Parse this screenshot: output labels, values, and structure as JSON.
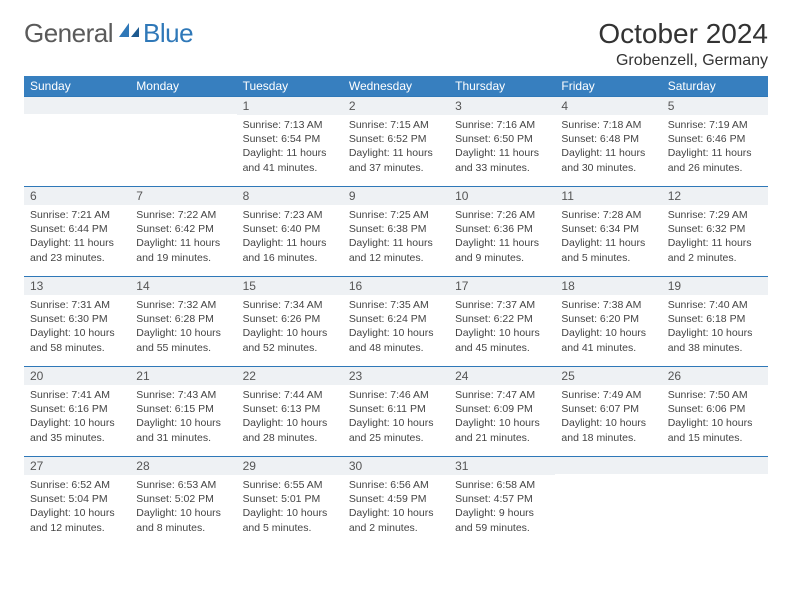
{
  "logo": {
    "part1": "General",
    "part2": "Blue"
  },
  "title": "October 2024",
  "location": "Grobenzell, Germany",
  "colors": {
    "header_bg": "#377fbf",
    "header_text": "#ffffff",
    "daynum_bg": "#eef1f4",
    "daynum_border": "#2f78b8",
    "body_text": "#444444",
    "logo_gray": "#5a5a5a",
    "logo_blue": "#2f78b8"
  },
  "fonts": {
    "title_pt": 28,
    "location_pt": 16,
    "header_pt": 12,
    "daynum_pt": 12,
    "cell_pt": 10.5
  },
  "weekdays": [
    "Sunday",
    "Monday",
    "Tuesday",
    "Wednesday",
    "Thursday",
    "Friday",
    "Saturday"
  ],
  "weeks": [
    [
      {
        "day": "",
        "l1": "",
        "l2": "",
        "l3": ""
      },
      {
        "day": "",
        "l1": "",
        "l2": "",
        "l3": ""
      },
      {
        "day": "1",
        "l1": "Sunrise: 7:13 AM",
        "l2": "Sunset: 6:54 PM",
        "l3": "Daylight: 11 hours and 41 minutes."
      },
      {
        "day": "2",
        "l1": "Sunrise: 7:15 AM",
        "l2": "Sunset: 6:52 PM",
        "l3": "Daylight: 11 hours and 37 minutes."
      },
      {
        "day": "3",
        "l1": "Sunrise: 7:16 AM",
        "l2": "Sunset: 6:50 PM",
        "l3": "Daylight: 11 hours and 33 minutes."
      },
      {
        "day": "4",
        "l1": "Sunrise: 7:18 AM",
        "l2": "Sunset: 6:48 PM",
        "l3": "Daylight: 11 hours and 30 minutes."
      },
      {
        "day": "5",
        "l1": "Sunrise: 7:19 AM",
        "l2": "Sunset: 6:46 PM",
        "l3": "Daylight: 11 hours and 26 minutes."
      }
    ],
    [
      {
        "day": "6",
        "l1": "Sunrise: 7:21 AM",
        "l2": "Sunset: 6:44 PM",
        "l3": "Daylight: 11 hours and 23 minutes."
      },
      {
        "day": "7",
        "l1": "Sunrise: 7:22 AM",
        "l2": "Sunset: 6:42 PM",
        "l3": "Daylight: 11 hours and 19 minutes."
      },
      {
        "day": "8",
        "l1": "Sunrise: 7:23 AM",
        "l2": "Sunset: 6:40 PM",
        "l3": "Daylight: 11 hours and 16 minutes."
      },
      {
        "day": "9",
        "l1": "Sunrise: 7:25 AM",
        "l2": "Sunset: 6:38 PM",
        "l3": "Daylight: 11 hours and 12 minutes."
      },
      {
        "day": "10",
        "l1": "Sunrise: 7:26 AM",
        "l2": "Sunset: 6:36 PM",
        "l3": "Daylight: 11 hours and 9 minutes."
      },
      {
        "day": "11",
        "l1": "Sunrise: 7:28 AM",
        "l2": "Sunset: 6:34 PM",
        "l3": "Daylight: 11 hours and 5 minutes."
      },
      {
        "day": "12",
        "l1": "Sunrise: 7:29 AM",
        "l2": "Sunset: 6:32 PM",
        "l3": "Daylight: 11 hours and 2 minutes."
      }
    ],
    [
      {
        "day": "13",
        "l1": "Sunrise: 7:31 AM",
        "l2": "Sunset: 6:30 PM",
        "l3": "Daylight: 10 hours and 58 minutes."
      },
      {
        "day": "14",
        "l1": "Sunrise: 7:32 AM",
        "l2": "Sunset: 6:28 PM",
        "l3": "Daylight: 10 hours and 55 minutes."
      },
      {
        "day": "15",
        "l1": "Sunrise: 7:34 AM",
        "l2": "Sunset: 6:26 PM",
        "l3": "Daylight: 10 hours and 52 minutes."
      },
      {
        "day": "16",
        "l1": "Sunrise: 7:35 AM",
        "l2": "Sunset: 6:24 PM",
        "l3": "Daylight: 10 hours and 48 minutes."
      },
      {
        "day": "17",
        "l1": "Sunrise: 7:37 AM",
        "l2": "Sunset: 6:22 PM",
        "l3": "Daylight: 10 hours and 45 minutes."
      },
      {
        "day": "18",
        "l1": "Sunrise: 7:38 AM",
        "l2": "Sunset: 6:20 PM",
        "l3": "Daylight: 10 hours and 41 minutes."
      },
      {
        "day": "19",
        "l1": "Sunrise: 7:40 AM",
        "l2": "Sunset: 6:18 PM",
        "l3": "Daylight: 10 hours and 38 minutes."
      }
    ],
    [
      {
        "day": "20",
        "l1": "Sunrise: 7:41 AM",
        "l2": "Sunset: 6:16 PM",
        "l3": "Daylight: 10 hours and 35 minutes."
      },
      {
        "day": "21",
        "l1": "Sunrise: 7:43 AM",
        "l2": "Sunset: 6:15 PM",
        "l3": "Daylight: 10 hours and 31 minutes."
      },
      {
        "day": "22",
        "l1": "Sunrise: 7:44 AM",
        "l2": "Sunset: 6:13 PM",
        "l3": "Daylight: 10 hours and 28 minutes."
      },
      {
        "day": "23",
        "l1": "Sunrise: 7:46 AM",
        "l2": "Sunset: 6:11 PM",
        "l3": "Daylight: 10 hours and 25 minutes."
      },
      {
        "day": "24",
        "l1": "Sunrise: 7:47 AM",
        "l2": "Sunset: 6:09 PM",
        "l3": "Daylight: 10 hours and 21 minutes."
      },
      {
        "day": "25",
        "l1": "Sunrise: 7:49 AM",
        "l2": "Sunset: 6:07 PM",
        "l3": "Daylight: 10 hours and 18 minutes."
      },
      {
        "day": "26",
        "l1": "Sunrise: 7:50 AM",
        "l2": "Sunset: 6:06 PM",
        "l3": "Daylight: 10 hours and 15 minutes."
      }
    ],
    [
      {
        "day": "27",
        "l1": "Sunrise: 6:52 AM",
        "l2": "Sunset: 5:04 PM",
        "l3": "Daylight: 10 hours and 12 minutes."
      },
      {
        "day": "28",
        "l1": "Sunrise: 6:53 AM",
        "l2": "Sunset: 5:02 PM",
        "l3": "Daylight: 10 hours and 8 minutes."
      },
      {
        "day": "29",
        "l1": "Sunrise: 6:55 AM",
        "l2": "Sunset: 5:01 PM",
        "l3": "Daylight: 10 hours and 5 minutes."
      },
      {
        "day": "30",
        "l1": "Sunrise: 6:56 AM",
        "l2": "Sunset: 4:59 PM",
        "l3": "Daylight: 10 hours and 2 minutes."
      },
      {
        "day": "31",
        "l1": "Sunrise: 6:58 AM",
        "l2": "Sunset: 4:57 PM",
        "l3": "Daylight: 9 hours and 59 minutes."
      },
      {
        "day": "",
        "l1": "",
        "l2": "",
        "l3": ""
      },
      {
        "day": "",
        "l1": "",
        "l2": "",
        "l3": ""
      }
    ]
  ]
}
